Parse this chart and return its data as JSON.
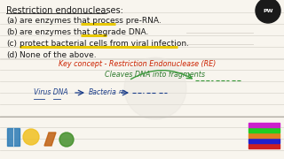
{
  "bg_color": "#f8f5ee",
  "ruled_line_color": "#d8d4cc",
  "title": "Restriction endonucleases:",
  "options": [
    [
      "(a)",
      "are enzymes that process pre-RNA."
    ],
    [
      "(b)",
      "are enzymes that degrade DNA."
    ],
    [
      "(c)",
      "protect bacterial cells from viral infection."
    ],
    [
      "(d)",
      "None of the above."
    ]
  ],
  "yellow": "#e8c800",
  "highlight_a": [
    0.29,
    0.445,
    0.825
  ],
  "highlight_b": [
    0.29,
    0.395,
    0.745
  ],
  "highlight_c": [
    0.115,
    0.79,
    0.665
  ],
  "text_color": "#1a1a1a",
  "red_color": "#cc2200",
  "green_color": "#2d7a2d",
  "blue_color": "#1a3d8a",
  "key1": "Key concept - Restriction Endonuclease (RE)",
  "key2": "Cleaves DNA into fragments",
  "pw_color": "#1a1a1a",
  "font_title": 7.0,
  "font_opt": 6.5,
  "font_key": 5.8,
  "font_arrow": 5.5
}
